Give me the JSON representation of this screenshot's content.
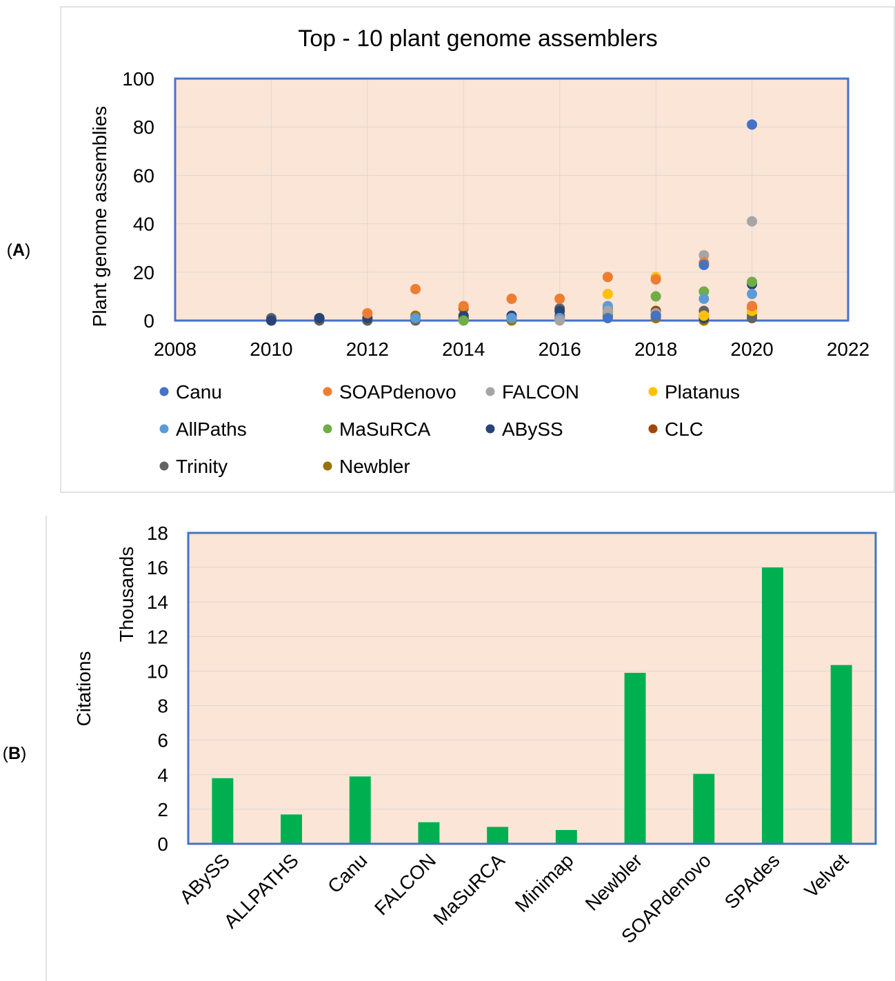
{
  "panels": {
    "a_label": "A",
    "b_label": "B"
  },
  "chart_data": [
    {
      "type": "scatter",
      "title": "Top - 10 plant genome assemblers",
      "xlabel": "",
      "ylabel": "Plant genome assemblies",
      "xlim": [
        2008,
        2022
      ],
      "ylim": [
        0,
        100
      ],
      "xticks": [
        "2008",
        "2010",
        "2012",
        "2014",
        "2016",
        "2018",
        "2020",
        "2022"
      ],
      "yticks": [
        "0",
        "20",
        "40",
        "60",
        "80",
        "100"
      ],
      "grid": true,
      "legend": "bottom",
      "plot_bg": "#fbe5d6",
      "frame_color": "#4472c4",
      "series": [
        {
          "name": "Canu",
          "color": "#4472c4",
          "points": [
            [
              2017,
              1
            ],
            [
              2018,
              2
            ],
            [
              2019,
              23
            ],
            [
              2020,
              81
            ]
          ]
        },
        {
          "name": "SOAPdenovo",
          "color": "#ed7d31",
          "points": [
            [
              2012,
              3
            ],
            [
              2013,
              13
            ],
            [
              2014,
              6
            ],
            [
              2015,
              9
            ],
            [
              2016,
              9
            ],
            [
              2017,
              18
            ],
            [
              2018,
              17
            ],
            [
              2019,
              24
            ],
            [
              2020,
              6
            ]
          ]
        },
        {
          "name": "FALCON",
          "color": "#a5a5a5",
          "points": [
            [
              2016,
              0
            ],
            [
              2017,
              4
            ],
            [
              2018,
              3
            ],
            [
              2019,
              27
            ],
            [
              2020,
              41
            ]
          ]
        },
        {
          "name": "Platanus",
          "color": "#ffc000",
          "points": [
            [
              2017,
              11
            ],
            [
              2018,
              18
            ],
            [
              2019,
              2
            ],
            [
              2020,
              4
            ]
          ]
        },
        {
          "name": "AllPaths",
          "color": "#5b9bd5",
          "points": [
            [
              2013,
              1
            ],
            [
              2015,
              1
            ],
            [
              2016,
              1
            ],
            [
              2017,
              6
            ],
            [
              2018,
              2
            ],
            [
              2019,
              9
            ],
            [
              2020,
              11
            ]
          ]
        },
        {
          "name": "MaSuRCA",
          "color": "#70ad47",
          "points": [
            [
              2014,
              0
            ],
            [
              2016,
              1
            ],
            [
              2017,
              3
            ],
            [
              2018,
              10
            ],
            [
              2019,
              12
            ],
            [
              2020,
              16
            ]
          ]
        },
        {
          "name": "ABySS",
          "color": "#264478",
          "points": [
            [
              2010,
              0
            ],
            [
              2011,
              1
            ],
            [
              2012,
              1
            ],
            [
              2014,
              2
            ],
            [
              2015,
              2
            ],
            [
              2016,
              4
            ],
            [
              2017,
              4
            ],
            [
              2018,
              2
            ],
            [
              2019,
              1
            ],
            [
              2020,
              15
            ]
          ]
        },
        {
          "name": "CLC",
          "color": "#9e480e",
          "points": [
            [
              2013,
              1
            ],
            [
              2014,
              1
            ],
            [
              2016,
              2
            ],
            [
              2017,
              2
            ],
            [
              2018,
              4
            ],
            [
              2019,
              2
            ],
            [
              2020,
              5
            ]
          ]
        },
        {
          "name": "Trinity",
          "color": "#636363",
          "points": [
            [
              2010,
              1
            ],
            [
              2011,
              0
            ],
            [
              2012,
              0
            ],
            [
              2013,
              0
            ],
            [
              2014,
              1
            ],
            [
              2015,
              1
            ],
            [
              2016,
              5
            ],
            [
              2017,
              5
            ],
            [
              2018,
              3
            ],
            [
              2019,
              4
            ],
            [
              2020,
              1
            ]
          ]
        },
        {
          "name": "Newbler",
          "color": "#997300",
          "points": [
            [
              2010,
              0
            ],
            [
              2011,
              1
            ],
            [
              2012,
              0
            ],
            [
              2013,
              2
            ],
            [
              2014,
              5
            ],
            [
              2015,
              0
            ],
            [
              2016,
              1
            ],
            [
              2017,
              2
            ],
            [
              2018,
              1
            ],
            [
              2019,
              0
            ],
            [
              2020,
              2
            ]
          ]
        }
      ]
    },
    {
      "type": "bar",
      "title": "",
      "xlabel": "",
      "ylabel": "Citations",
      "ylabel_unit": "Thousands",
      "ylim": [
        0,
        18
      ],
      "yticks": [
        "0",
        "2",
        "4",
        "6",
        "8",
        "10",
        "12",
        "14",
        "16",
        "18"
      ],
      "grid": true,
      "plot_bg": "#fbe5d6",
      "frame_color": "#4472c4",
      "bar_color": "#00b050",
      "categories": [
        "ABySS",
        "ALLPATHS",
        "Canu",
        "FALCON",
        "MaSuRCA",
        "Minimap",
        "Newbler",
        "SOAPdenovo",
        "SPAdes",
        "Velvet"
      ],
      "values": [
        3.8,
        1.7,
        3.9,
        1.25,
        0.98,
        0.8,
        9.9,
        4.05,
        16.0,
        10.35
      ]
    }
  ]
}
